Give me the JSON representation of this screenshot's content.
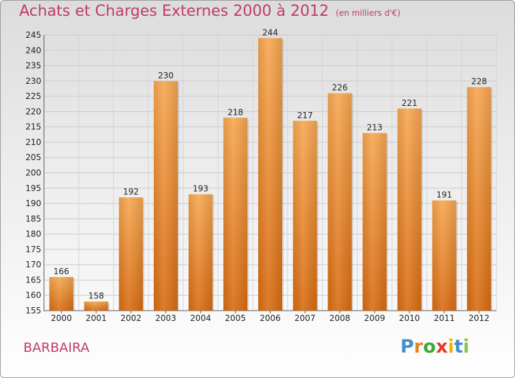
{
  "header": {
    "title": "Achats et Charges Externes 2000 à 2012",
    "unit": "(en milliers d'€)"
  },
  "subject": "BARBAIRA",
  "logo": {
    "text": "Proxiti",
    "letters": [
      {
        "ch": "P",
        "color": "#3e8fd0"
      },
      {
        "ch": "r",
        "color": "#e8831f"
      },
      {
        "ch": "o",
        "color": "#3aaa35"
      },
      {
        "ch": "x",
        "color": "#e53929"
      },
      {
        "ch": "i",
        "color": "#f5b400"
      },
      {
        "ch": "t",
        "color": "#3e8fd0"
      },
      {
        "ch": "i",
        "color": "#8bc34a"
      }
    ]
  },
  "colors": {
    "bar_light": "#f7a751",
    "bar_dark": "#d86c12",
    "title": "#c03a6b"
  },
  "chart_data": {
    "type": "bar",
    "title": "Achats et Charges Externes 2000 à 2012",
    "subtitle": "(en milliers d'€)",
    "categories": [
      "2000",
      "2001",
      "2002",
      "2003",
      "2004",
      "2005",
      "2006",
      "2007",
      "2008",
      "2009",
      "2010",
      "2011",
      "2012"
    ],
    "values": [
      166,
      158,
      192,
      230,
      193,
      218,
      244,
      217,
      226,
      213,
      221,
      191,
      228
    ],
    "ylim": [
      155,
      245
    ],
    "yticks": [
      155,
      160,
      165,
      170,
      175,
      180,
      185,
      190,
      195,
      200,
      205,
      210,
      215,
      220,
      225,
      230,
      235,
      240,
      245
    ],
    "grid": true,
    "xlabel": "",
    "ylabel": ""
  }
}
